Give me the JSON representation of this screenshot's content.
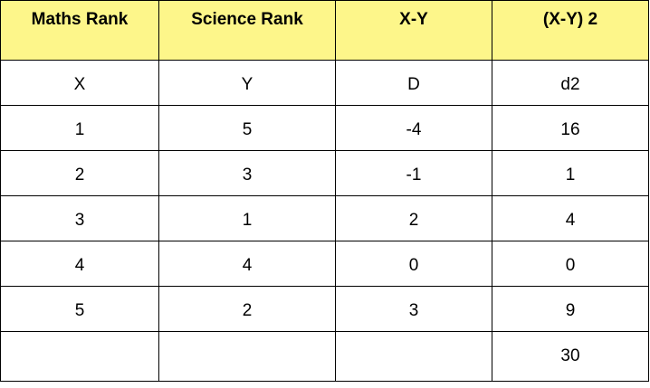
{
  "header_color": "#fdf68a",
  "table": {
    "headers": [
      "Maths Rank",
      "Science Rank",
      "X-Y",
      "(X-Y) 2"
    ],
    "rows": [
      [
        "X",
        "Y",
        "D",
        "d2"
      ],
      [
        "1",
        "5",
        "-4",
        "16"
      ],
      [
        "2",
        "3",
        "-1",
        "1"
      ],
      [
        "3",
        "1",
        "2",
        "4"
      ],
      [
        "4",
        "4",
        "0",
        "0"
      ],
      [
        "5",
        "2",
        "3",
        "9"
      ],
      [
        "",
        "",
        "",
        "30"
      ]
    ]
  }
}
